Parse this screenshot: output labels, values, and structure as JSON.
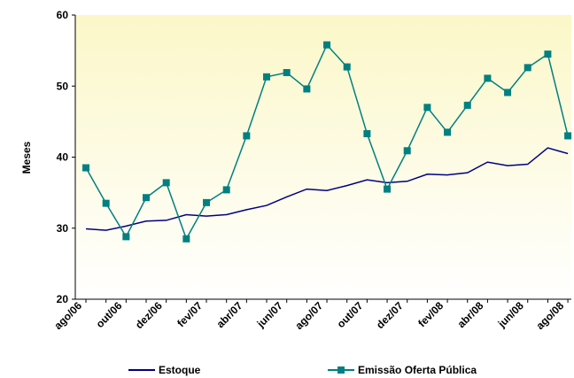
{
  "chart_data": {
    "type": "line",
    "y_label": "Meses",
    "categories": [
      "ago/06",
      null,
      "out/06",
      null,
      "dez/06",
      null,
      "fev/07",
      null,
      "abr/07",
      null,
      "jun/07",
      null,
      "ago/07",
      null,
      "out/07",
      null,
      "dez/07",
      null,
      "fev/08",
      null,
      "abr/08",
      null,
      "jun/08",
      null,
      "ago/08"
    ],
    "series": [
      {
        "name": "Estoque",
        "color": "#000080",
        "marker": false,
        "values": [
          29.9,
          29.7,
          30.3,
          31,
          31.1,
          31.9,
          31.7,
          31.9,
          32.6,
          33.2,
          34.4,
          35.5,
          35.3,
          36,
          36.8,
          36.4,
          36.6,
          37.6,
          37.5,
          37.8,
          39.3,
          38.8,
          39,
          41.3,
          40.5
        ]
      },
      {
        "name": "Emissão Oferta Pública",
        "color": "#008080",
        "marker": true,
        "values": [
          38.5,
          33.5,
          28.8,
          34.3,
          36.4,
          28.5,
          33.6,
          35.4,
          43,
          51.3,
          51.9,
          49.6,
          55.8,
          52.7,
          43.3,
          35.5,
          40.9,
          47,
          43.5,
          47.3,
          51.1,
          49.1,
          52.6,
          54.5,
          43
        ]
      }
    ],
    "ylim": [
      20,
      60
    ],
    "yticks": [
      20,
      30,
      40,
      50,
      60
    ],
    "legend": "bottom"
  }
}
